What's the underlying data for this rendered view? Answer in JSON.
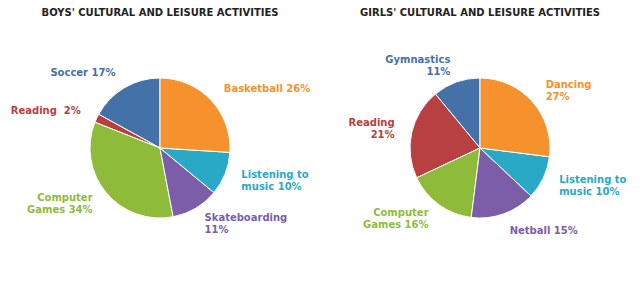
{
  "chart_data": [
    {
      "type": "pie",
      "title": "BOYS' CULTURAL AND LEISURE ACTIVITIES",
      "values": [
        17,
        2,
        34,
        11,
        10,
        26
      ],
      "value_labels": [
        "Soccer 17%",
        "Reading  2%",
        "Computer\nGames 34%",
        "Skateboarding\n11%",
        "Listening to\nmusic 10%",
        "Basketball 26%"
      ],
      "colors": [
        "#4472a8",
        "#b94040",
        "#8fbb3a",
        "#7b5ea7",
        "#29a9c5",
        "#f5922e"
      ],
      "data_labels": true
    },
    {
      "type": "pie",
      "title": "GIRLS' CULTURAL AND LEISURE ACTIVITIES",
      "values": [
        11,
        21,
        16,
        15,
        10,
        27
      ],
      "value_labels": [
        "Gymnastics\n11%",
        "Reading\n21%",
        "Computer\nGames 16%",
        "Netball 15%",
        "Listening to\nmusic 10%",
        "Dancing\n27%"
      ],
      "colors": [
        "#4472a8",
        "#b94040",
        "#8fbb3a",
        "#7b5ea7",
        "#29a9c5",
        "#f5922e"
      ],
      "data_labels": true
    }
  ]
}
